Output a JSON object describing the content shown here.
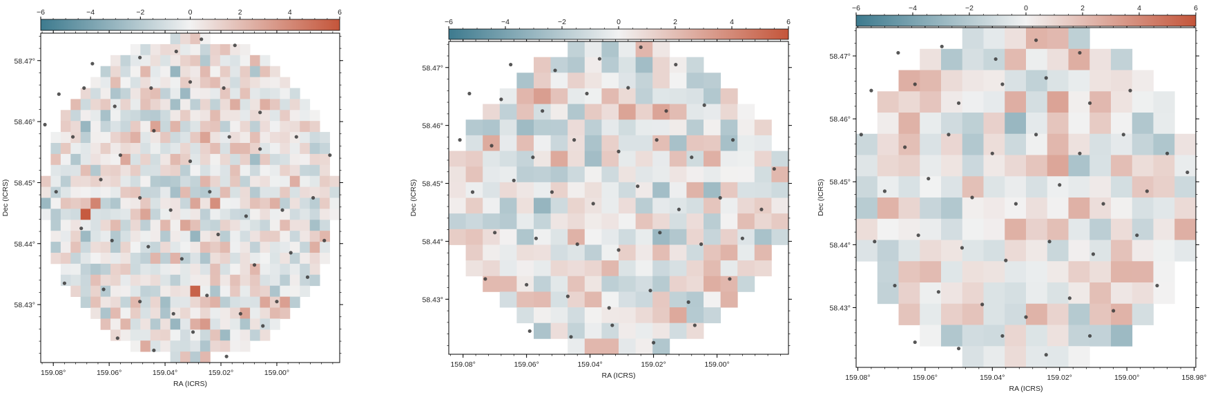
{
  "colors": {
    "negative": "#3d7a8e",
    "neutral": "#f2f2f2",
    "positive": "#c4553a",
    "point": "#3a3a3a",
    "frame": "#000000"
  },
  "chart_data": [
    {
      "type": "heatmap",
      "name": "panel-1",
      "xlabel": "RA (ICRS)",
      "ylabel": "Dec (ICRS)",
      "x_ticks": [
        "159.08°",
        "159.06°",
        "159.04°",
        "159.02°",
        "159.00°"
      ],
      "x_tick_values": [
        159.08,
        159.06,
        159.04,
        159.02,
        159.0
      ],
      "y_ticks": [
        "58.47°",
        "58.46°",
        "58.45°",
        "58.44°",
        "58.43°"
      ],
      "y_tick_values": [
        58.47,
        58.46,
        58.45,
        58.44,
        58.43
      ],
      "xlim": [
        159.0845,
        158.9775
      ],
      "ylim": [
        58.4205,
        58.4745
      ],
      "colorbar": {
        "range": [
          -6,
          6
        ],
        "ticks": [
          "−6",
          "−4",
          "−2",
          "0",
          "2",
          "4",
          "6"
        ],
        "tick_values": [
          -6,
          -4,
          -2,
          0,
          2,
          4,
          6
        ]
      },
      "grid_size": [
        30,
        30
      ],
      "mask_radius_fraction": 0.98,
      "value_range": [
        -6,
        6
      ],
      "seed": 11,
      "hotspots": [
        [
          4,
          16,
          5.8
        ],
        [
          5,
          15,
          4.2
        ],
        [
          15,
          23,
          5.5
        ],
        [
          29,
          20,
          4.6
        ],
        [
          17,
          15,
          3.8
        ],
        [
          16,
          26,
          3.4
        ]
      ],
      "points": [
        [
          159.066,
          58.4695
        ],
        [
          159.049,
          58.4705
        ],
        [
          159.036,
          58.4715
        ],
        [
          159.027,
          58.4735
        ],
        [
          159.015,
          58.4725
        ],
        [
          159.078,
          58.4645
        ],
        [
          159.069,
          58.4655
        ],
        [
          159.058,
          58.4625
        ],
        [
          159.045,
          58.4655
        ],
        [
          159.031,
          58.4665
        ],
        [
          159.019,
          58.4655
        ],
        [
          159.006,
          58.4615
        ],
        [
          159.083,
          58.4595
        ],
        [
          159.073,
          58.4575
        ],
        [
          159.056,
          58.4545
        ],
        [
          159.044,
          58.4585
        ],
        [
          159.031,
          58.4535
        ],
        [
          159.017,
          58.4575
        ],
        [
          159.006,
          58.4555
        ],
        [
          158.993,
          58.4575
        ],
        [
          158.981,
          58.4545
        ],
        [
          159.079,
          58.4485
        ],
        [
          159.063,
          58.4505
        ],
        [
          159.049,
          58.4475
        ],
        [
          159.038,
          58.4455
        ],
        [
          159.024,
          58.4485
        ],
        [
          159.011,
          58.4445
        ],
        [
          158.998,
          58.4455
        ],
        [
          158.987,
          58.4475
        ],
        [
          159.07,
          58.4425
        ],
        [
          159.059,
          58.4405
        ],
        [
          159.046,
          58.4395
        ],
        [
          159.034,
          58.4375
        ],
        [
          159.021,
          58.4415
        ],
        [
          159.008,
          58.4365
        ],
        [
          158.995,
          58.4385
        ],
        [
          158.983,
          58.4405
        ],
        [
          159.076,
          58.4335
        ],
        [
          159.062,
          58.4325
        ],
        [
          159.049,
          58.4305
        ],
        [
          159.037,
          58.4285
        ],
        [
          159.025,
          58.4315
        ],
        [
          159.013,
          58.4285
        ],
        [
          159.0,
          58.4305
        ],
        [
          158.989,
          58.4345
        ],
        [
          159.057,
          58.4245
        ],
        [
          159.044,
          58.4225
        ],
        [
          159.03,
          58.4255
        ],
        [
          159.018,
          58.4215
        ],
        [
          159.005,
          58.4265
        ]
      ]
    },
    {
      "type": "heatmap",
      "name": "panel-2",
      "xlabel": "RA (ICRS)",
      "ylabel": "Dec (ICRS)",
      "x_ticks": [
        "159.08°",
        "159.06°",
        "159.04°",
        "159.02°",
        "159.00°"
      ],
      "x_tick_values": [
        159.08,
        159.06,
        159.04,
        159.02,
        159.0
      ],
      "y_ticks": [
        "58.47°",
        "58.46°",
        "58.45°",
        "58.44°",
        "58.43°"
      ],
      "y_tick_values": [
        58.47,
        58.46,
        58.45,
        58.44,
        58.43
      ],
      "xlim": [
        159.0845,
        158.9775
      ],
      "ylim": [
        58.4205,
        58.4745
      ],
      "colorbar": {
        "range": [
          -6,
          6
        ],
        "ticks": [
          "−6",
          "−4",
          "−2",
          "0",
          "2",
          "4",
          "6"
        ],
        "tick_values": [
          -6,
          -4,
          -2,
          0,
          2,
          4,
          6
        ]
      },
      "grid_size": [
        20,
        20
      ],
      "mask_radius_fraction": 0.99,
      "value_range": [
        -6,
        6
      ],
      "seed": 23,
      "hotspots": [
        [
          5,
          3,
          3.2
        ],
        [
          10,
          4,
          3.0
        ],
        [
          6,
          7,
          2.8
        ],
        [
          15,
          15,
          2.6
        ],
        [
          16,
          13,
          2.4
        ]
      ],
      "points": [
        [
          159.065,
          58.4705
        ],
        [
          159.051,
          58.4695
        ],
        [
          159.037,
          58.4715
        ],
        [
          159.024,
          58.4735
        ],
        [
          159.013,
          58.4705
        ],
        [
          159.078,
          58.4655
        ],
        [
          159.068,
          58.4645
        ],
        [
          159.055,
          58.4625
        ],
        [
          159.041,
          58.4655
        ],
        [
          159.028,
          58.4665
        ],
        [
          159.016,
          58.4625
        ],
        [
          159.004,
          58.4635
        ],
        [
          159.081,
          58.4575
        ],
        [
          159.071,
          58.4565
        ],
        [
          159.058,
          58.4545
        ],
        [
          159.045,
          58.4575
        ],
        [
          159.031,
          58.4555
        ],
        [
          159.019,
          58.4575
        ],
        [
          159.008,
          58.4545
        ],
        [
          158.995,
          58.4575
        ],
        [
          158.982,
          58.4525
        ],
        [
          159.077,
          58.4485
        ],
        [
          159.064,
          58.4505
        ],
        [
          159.052,
          58.4485
        ],
        [
          159.039,
          58.4465
        ],
        [
          159.025,
          58.4495
        ],
        [
          159.012,
          58.4455
        ],
        [
          158.999,
          58.4475
        ],
        [
          158.986,
          58.4455
        ],
        [
          159.07,
          58.4415
        ],
        [
          159.057,
          58.4405
        ],
        [
          159.044,
          58.4395
        ],
        [
          159.031,
          58.4385
        ],
        [
          159.018,
          58.4415
        ],
        [
          159.005,
          58.4395
        ],
        [
          158.992,
          58.4405
        ],
        [
          159.073,
          58.4335
        ],
        [
          159.06,
          58.4325
        ],
        [
          159.047,
          58.4305
        ],
        [
          159.034,
          58.4285
        ],
        [
          159.021,
          58.4315
        ],
        [
          159.009,
          58.4295
        ],
        [
          158.996,
          58.4335
        ],
        [
          159.059,
          58.4245
        ],
        [
          159.046,
          58.4235
        ],
        [
          159.033,
          58.4255
        ],
        [
          159.02,
          58.4225
        ],
        [
          159.007,
          58.4255
        ]
      ]
    },
    {
      "type": "heatmap",
      "name": "panel-3",
      "xlabel": "RA (ICRS)",
      "ylabel": "Dec (ICRS)",
      "x_ticks": [
        "159.08°",
        "159.06°",
        "159.04°",
        "159.02°",
        "159.00°",
        "158.98°"
      ],
      "x_tick_values": [
        159.08,
        159.06,
        159.04,
        159.02,
        159.0,
        158.98
      ],
      "y_ticks": [
        "58.47°",
        "58.46°",
        "58.45°",
        "58.44°",
        "58.43°"
      ],
      "y_tick_values": [
        58.47,
        58.46,
        58.45,
        58.44,
        58.43
      ],
      "xlim": [
        159.0805,
        158.9795
      ],
      "ylim": [
        58.4205,
        58.4745
      ],
      "colorbar": {
        "range": [
          -6,
          6
        ],
        "ticks": [
          "−6",
          "−4",
          "−2",
          "0",
          "2",
          "4",
          "6"
        ],
        "tick_values": [
          -6,
          -4,
          -2,
          0,
          2,
          4,
          6
        ]
      },
      "grid_size": [
        16,
        16
      ],
      "mask_radius_fraction": 1.0,
      "value_range": [
        -6,
        6
      ],
      "seed": 37,
      "hotspots": [
        [
          8,
          0,
          2.4
        ],
        [
          9,
          0,
          2.2
        ],
        [
          10,
          1,
          2.6
        ],
        [
          1,
          8,
          2.4
        ],
        [
          7,
          9,
          2.5
        ],
        [
          11,
          3,
          2.2
        ]
      ],
      "points": [
        [
          159.068,
          58.4705
        ],
        [
          159.055,
          58.4715
        ],
        [
          159.039,
          58.4695
        ],
        [
          159.027,
          58.4725
        ],
        [
          159.014,
          58.4705
        ],
        [
          159.076,
          58.4645
        ],
        [
          159.063,
          58.4655
        ],
        [
          159.05,
          58.4625
        ],
        [
          159.037,
          58.4655
        ],
        [
          159.024,
          58.4665
        ],
        [
          159.011,
          58.4625
        ],
        [
          158.999,
          58.4645
        ],
        [
          159.079,
          58.4575
        ],
        [
          159.066,
          58.4555
        ],
        [
          159.053,
          58.4575
        ],
        [
          159.04,
          58.4545
        ],
        [
          159.027,
          58.4575
        ],
        [
          159.014,
          58.4545
        ],
        [
          159.001,
          58.4575
        ],
        [
          158.988,
          58.4545
        ],
        [
          159.072,
          58.4485
        ],
        [
          159.059,
          58.4505
        ],
        [
          159.046,
          58.4475
        ],
        [
          159.033,
          58.4465
        ],
        [
          159.02,
          58.4495
        ],
        [
          159.007,
          58.4465
        ],
        [
          158.994,
          58.4485
        ],
        [
          158.982,
          58.4515
        ],
        [
          159.075,
          58.4405
        ],
        [
          159.062,
          58.4415
        ],
        [
          159.049,
          58.4395
        ],
        [
          159.036,
          58.4375
        ],
        [
          159.023,
          58.4405
        ],
        [
          159.01,
          58.4385
        ],
        [
          158.997,
          58.4415
        ],
        [
          159.069,
          58.4335
        ],
        [
          159.056,
          58.4325
        ],
        [
          159.043,
          58.4305
        ],
        [
          159.03,
          58.4285
        ],
        [
          159.017,
          58.4315
        ],
        [
          159.004,
          58.4295
        ],
        [
          158.991,
          58.4335
        ],
        [
          159.063,
          58.4245
        ],
        [
          159.05,
          58.4235
        ],
        [
          159.037,
          58.4255
        ],
        [
          159.024,
          58.4225
        ],
        [
          159.011,
          58.4255
        ]
      ]
    }
  ]
}
